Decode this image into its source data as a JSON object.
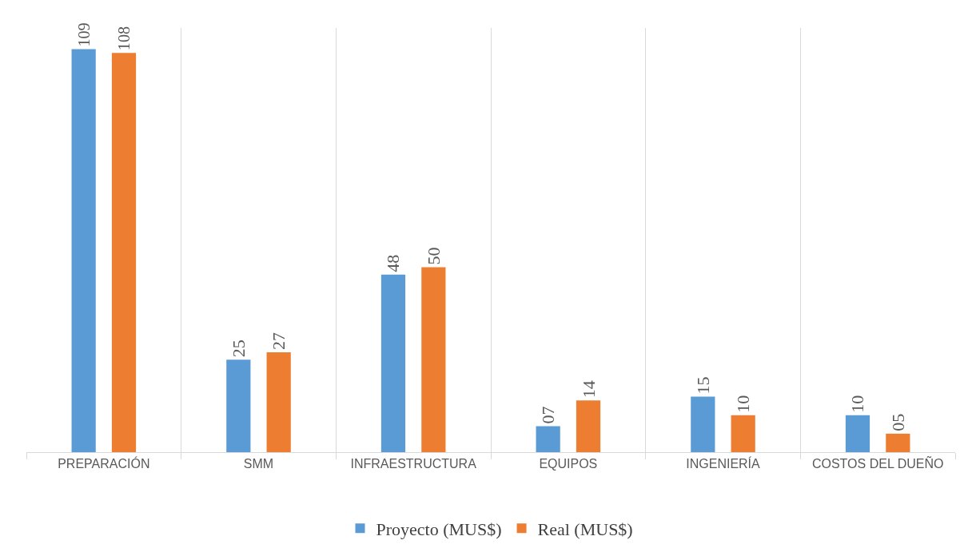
{
  "chart_data": {
    "type": "bar",
    "categories": [
      "PREPARACIÓN",
      "SMM",
      "INFRAESTRUCTURA",
      "EQUIPOS",
      "INGENIERÍA",
      "COSTOS DEL DUEÑO"
    ],
    "series": [
      {
        "name": "Proyecto (MUS$)",
        "color": "#5b9bd5",
        "values": [
          109,
          25,
          48,
          7,
          15,
          10
        ],
        "value_labels": [
          "109",
          "25",
          "48",
          "07",
          "15",
          "10"
        ]
      },
      {
        "name": "Real (MUS$)",
        "color": "#ed7d31",
        "values": [
          108,
          27,
          50,
          14,
          10,
          5
        ],
        "value_labels": [
          "108",
          "27",
          "50",
          "14",
          "10",
          "05"
        ]
      }
    ],
    "grid": "x",
    "legend": "bottom"
  }
}
